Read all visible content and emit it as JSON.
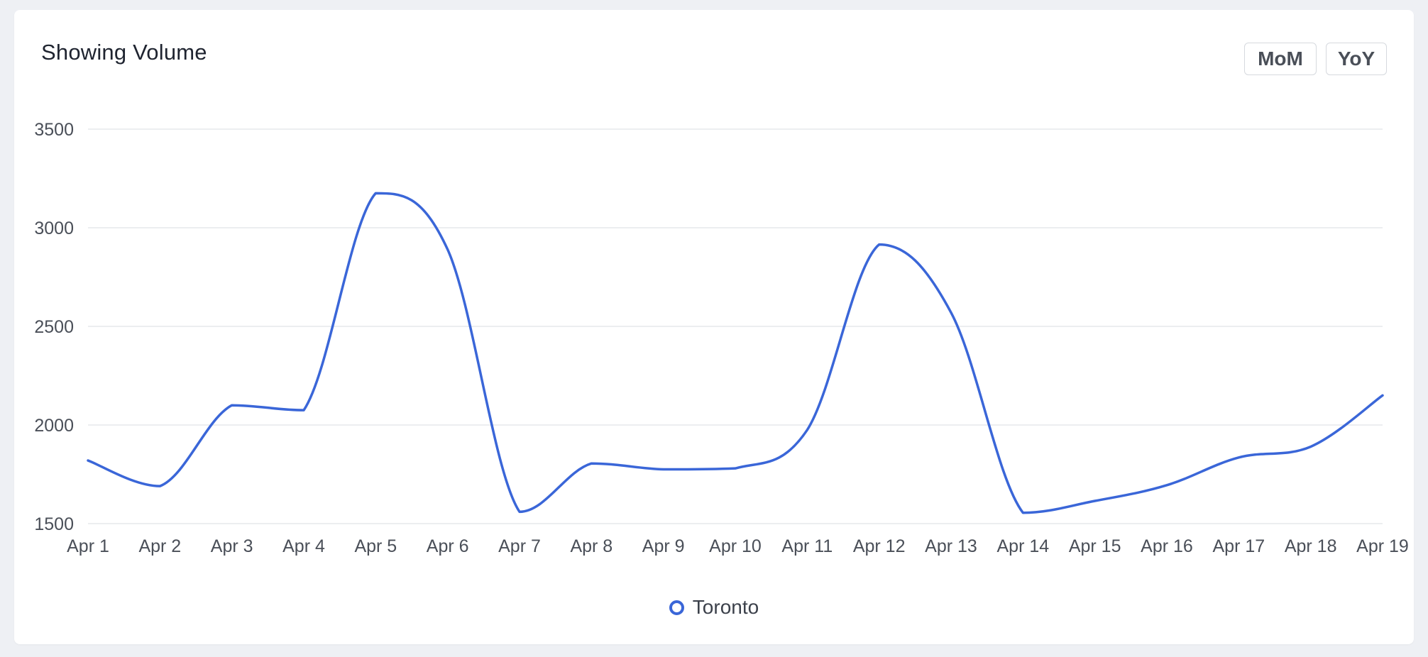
{
  "header": {
    "title": "Showing Volume",
    "buttons": [
      {
        "label": "MoM"
      },
      {
        "label": "YoY"
      }
    ]
  },
  "colors": {
    "series": "#3a66d8",
    "grid": "#e6e8ec",
    "tick_text": "#4a4f58"
  },
  "chart_data": {
    "type": "line",
    "title": "Showing Volume",
    "xlabel": "",
    "ylabel": "",
    "ylim": [
      1500,
      3500
    ],
    "yticks": [
      1500,
      2000,
      2500,
      3000,
      3500
    ],
    "categories": [
      "Apr 1",
      "Apr 2",
      "Apr 3",
      "Apr 4",
      "Apr 5",
      "Apr 6",
      "Apr 7",
      "Apr 8",
      "Apr 9",
      "Apr 10",
      "Apr 11",
      "Apr 12",
      "Apr 13",
      "Apr 14",
      "Apr 15",
      "Apr 16",
      "Apr 17",
      "Apr 18",
      "Apr 19"
    ],
    "series": [
      {
        "name": "Toronto",
        "values": [
          1820,
          1690,
          2100,
          2075,
          3175,
          2890,
          1560,
          1805,
          1775,
          1780,
          1975,
          2915,
          2570,
          1555,
          1615,
          1695,
          1835,
          1890,
          2150
        ]
      }
    ],
    "grid": true,
    "legend": "bottom-center"
  }
}
